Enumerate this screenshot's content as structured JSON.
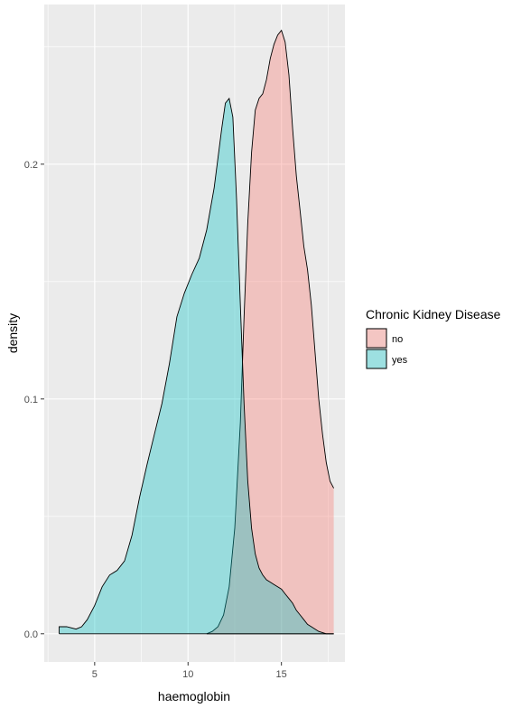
{
  "chart_data": {
    "type": "area",
    "subtype": "density",
    "xlabel": "haemoglobin",
    "ylabel": "density",
    "xlim": [
      2.3,
      18.4
    ],
    "ylim": [
      -0.012,
      0.268
    ],
    "x_ticks": [
      5,
      10,
      15
    ],
    "x_tick_labels": [
      "5",
      "10",
      "15"
    ],
    "y_ticks": [
      0.0,
      0.1,
      0.2
    ],
    "y_tick_labels": [
      "0.0",
      "0.1",
      "0.2"
    ],
    "grid": true,
    "legend": {
      "title": "Chronic Kidney Disease",
      "position": "right",
      "entries": [
        "no",
        "yes"
      ]
    },
    "colors": {
      "no": "#F8766D",
      "yes": "#00BFC4",
      "panel_bg": "#EBEBEB",
      "grid": "#FFFFFF",
      "outline": "#000000"
    },
    "series": [
      {
        "name": "no",
        "x": [
          11.0,
          11.3,
          11.6,
          11.9,
          12.2,
          12.5,
          12.8,
          13.0,
          13.2,
          13.4,
          13.6,
          13.8,
          14.0,
          14.2,
          14.4,
          14.6,
          14.8,
          15.0,
          15.2,
          15.4,
          15.6,
          15.8,
          16.0,
          16.2,
          16.4,
          16.6,
          16.8,
          17.0,
          17.2,
          17.4,
          17.6,
          17.8
        ],
        "y": [
          0.0,
          0.001,
          0.003,
          0.008,
          0.02,
          0.045,
          0.09,
          0.135,
          0.175,
          0.205,
          0.223,
          0.228,
          0.23,
          0.236,
          0.245,
          0.251,
          0.255,
          0.257,
          0.252,
          0.238,
          0.215,
          0.195,
          0.18,
          0.165,
          0.155,
          0.14,
          0.12,
          0.1,
          0.085,
          0.073,
          0.065,
          0.062
        ]
      },
      {
        "name": "yes",
        "x": [
          3.1,
          3.5,
          4.0,
          4.3,
          4.6,
          5.0,
          5.4,
          5.8,
          6.2,
          6.6,
          7.0,
          7.4,
          7.8,
          8.2,
          8.6,
          9.0,
          9.4,
          9.8,
          10.2,
          10.6,
          11.0,
          11.4,
          11.8,
          12.0,
          12.2,
          12.4,
          12.6,
          12.8,
          13.0,
          13.2,
          13.4,
          13.6,
          13.8,
          14.0,
          14.2,
          14.4,
          14.6,
          14.8,
          15.0,
          15.2,
          15.4,
          15.6,
          15.8,
          16.0,
          16.2,
          16.4,
          16.6,
          16.8,
          17.0,
          17.4,
          17.8
        ],
        "y": [
          0.003,
          0.003,
          0.002,
          0.003,
          0.006,
          0.012,
          0.02,
          0.025,
          0.027,
          0.031,
          0.042,
          0.058,
          0.072,
          0.085,
          0.098,
          0.115,
          0.135,
          0.145,
          0.153,
          0.16,
          0.172,
          0.19,
          0.215,
          0.226,
          0.228,
          0.22,
          0.185,
          0.14,
          0.098,
          0.065,
          0.045,
          0.034,
          0.028,
          0.025,
          0.023,
          0.022,
          0.021,
          0.02,
          0.019,
          0.017,
          0.015,
          0.013,
          0.01,
          0.008,
          0.006,
          0.004,
          0.003,
          0.002,
          0.001,
          0.0,
          0.0
        ]
      }
    ]
  }
}
